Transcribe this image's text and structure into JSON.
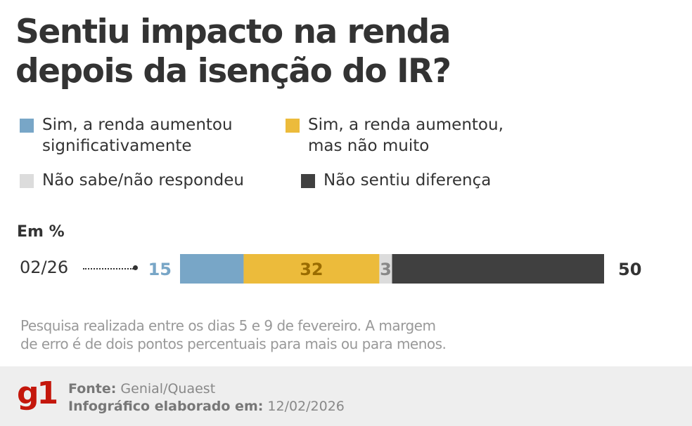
{
  "title_lines": [
    "Sentiu impacto na renda",
    "depois da isenção do IR?"
  ],
  "legend": [
    {
      "label_lines": [
        "Sim, a renda aumentou",
        "significativamente"
      ],
      "color": "#78a6c7"
    },
    {
      "label_lines": [
        "Sim, a renda aumentou,",
        "mas não muito"
      ],
      "color": "#ecbb3b"
    },
    {
      "label_lines": [
        "Não sabe/não respondeu"
      ],
      "color": "#dcdcdc"
    },
    {
      "label_lines": [
        "Não sentiu diferença"
      ],
      "color": "#404040"
    }
  ],
  "unit_label": "Em %",
  "chart_data": {
    "type": "bar",
    "orientation": "horizontal",
    "stacked": true,
    "categories": [
      "02/26"
    ],
    "xlim": [
      0,
      100
    ],
    "series": [
      {
        "name": "Sim, a renda aumentou significativamente",
        "values": [
          15
        ],
        "color": "#78a6c7",
        "label_color": "#78a6c7"
      },
      {
        "name": "Sim, a renda aumentou, mas não muito",
        "values": [
          32
        ],
        "color": "#ecbb3b",
        "label_color": "#9a6c00"
      },
      {
        "name": "Não sabe/não respondeu",
        "values": [
          3
        ],
        "color": "#dcdcdc",
        "label_color": "#888888"
      },
      {
        "name": "Não sentiu diferença",
        "values": [
          50
        ],
        "color": "#404040",
        "label_color": "#333333"
      }
    ]
  },
  "note_lines": [
    "Pesquisa realizada entre os dias 5 e 9 de fevereiro. A margem",
    "de erro é de dois pontos percentuais para mais ou para menos."
  ],
  "footer": {
    "logo": "g1",
    "source_label": "Fonte:",
    "source_value": "Genial/Quaest",
    "date_label": "Infográfico elaborado em:",
    "date_value": "12/02/2026"
  }
}
